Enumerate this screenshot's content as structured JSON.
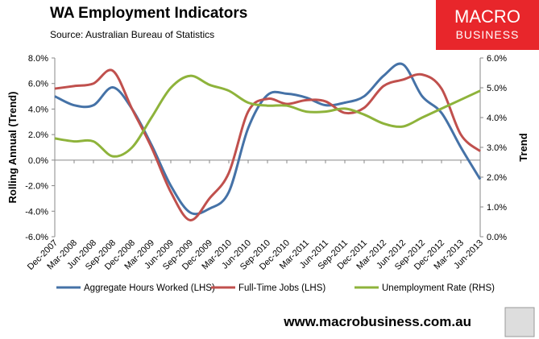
{
  "chart_data": {
    "type": "line",
    "title": "WA Employment Indicators",
    "subtitle": "Source: Australian Bureau of Statistics",
    "y_label": "Rolling Annual (Trend)",
    "y2_label": "Trend",
    "logo": [
      "MACRO",
      "BUSINESS"
    ],
    "footer": "www.macrobusiness.com.au",
    "categories": [
      "Dec-2007",
      "Mar-2008",
      "Jun-2008",
      "Sep-2008",
      "Dec-2008",
      "Mar-2009",
      "Jun-2009",
      "Sep-2009",
      "Dec-2009",
      "Mar-2010",
      "Jun-2010",
      "Sep-2010",
      "Dec-2010",
      "Mar-2011",
      "Jun-2011",
      "Sep-2011",
      "Dec-2011",
      "Mar-2012",
      "Jun-2012",
      "Sep-2012",
      "Dec-2012",
      "Mar-2013",
      "Jun-2013"
    ],
    "series": [
      {
        "name": "Aggregate Hours Worked (LHS)",
        "color": "#4572a7",
        "axis": "y",
        "values": [
          5.0,
          4.3,
          4.3,
          5.7,
          4.0,
          1.2,
          -2.0,
          -4.1,
          -3.8,
          -2.5,
          2.5,
          5.1,
          5.2,
          4.9,
          4.3,
          4.5,
          5.0,
          6.6,
          7.5,
          5.0,
          3.7,
          1.0,
          -1.5
        ]
      },
      {
        "name": "Full-Time Jobs (LHS)",
        "color": "#c0504d",
        "axis": "y",
        "values": [
          5.6,
          5.8,
          6.0,
          7.0,
          4.0,
          1.0,
          -2.5,
          -4.7,
          -3.0,
          -1.0,
          3.8,
          4.8,
          4.4,
          4.7,
          4.6,
          3.7,
          4.1,
          5.8,
          6.3,
          6.7,
          5.6,
          2.0,
          0.7
        ]
      },
      {
        "name": "Unemployment Rate (RHS)",
        "color": "#8eb33b",
        "axis": "y2",
        "values": [
          3.3,
          3.2,
          3.2,
          2.7,
          3.0,
          4.0,
          5.0,
          5.4,
          5.1,
          4.9,
          4.5,
          4.4,
          4.4,
          4.2,
          4.2,
          4.3,
          4.1,
          3.8,
          3.7,
          4.0,
          4.3,
          4.6,
          4.9
        ]
      }
    ],
    "ylim": [
      -6,
      8
    ],
    "yticks": [
      {
        "value": -6,
        "label": "-6.0%"
      },
      {
        "value": -4,
        "label": "-4.0%"
      },
      {
        "value": -2,
        "label": "-2.0%"
      },
      {
        "value": 0,
        "label": "0.0%"
      },
      {
        "value": 2,
        "label": "2.0%"
      },
      {
        "value": 4,
        "label": "4.0%"
      },
      {
        "value": 6,
        "label": "6.0%"
      },
      {
        "value": 8,
        "label": "8.0%"
      }
    ],
    "y2lim": [
      0,
      6
    ],
    "y2ticks": [
      {
        "value": 0,
        "label": "0.0%"
      },
      {
        "value": 1,
        "label": "1.0%"
      },
      {
        "value": 2,
        "label": "2.0%"
      },
      {
        "value": 3,
        "label": "3.0%"
      },
      {
        "value": 4,
        "label": "4.0%"
      },
      {
        "value": 5,
        "label": "5.0%"
      },
      {
        "value": 6,
        "label": "6.0%"
      }
    ],
    "legend": "bottom"
  }
}
